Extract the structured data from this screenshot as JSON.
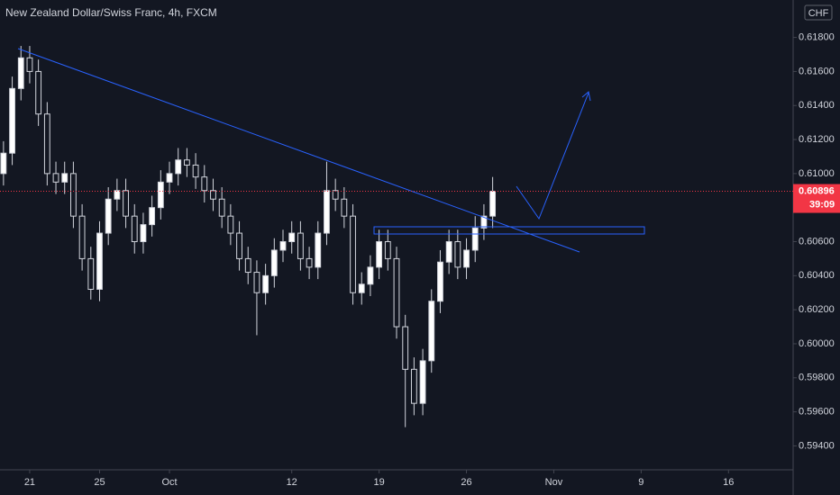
{
  "chart_data": {
    "type": "candlestick",
    "title": "New Zealand Dollar/Swiss Franc, 4h, FXCM",
    "currency": "CHF",
    "countdown": "39:09",
    "last_price": 0.60896,
    "up_color": "#ffffff",
    "down_color": "#131722",
    "last_price_color": "#f23645",
    "grid": false,
    "x": [
      -1.5,
      -1,
      -0.5,
      0,
      0.5,
      1,
      1.5,
      2,
      2.5,
      3,
      3.5,
      4,
      4.5,
      5,
      5.5,
      6,
      6.5,
      7,
      7.5,
      8,
      8.5,
      9,
      9.5,
      10,
      10.5,
      11,
      11.5,
      12,
      12.5,
      13,
      13.5,
      14,
      14.5,
      15,
      15.5,
      16,
      16.5,
      17,
      17.5,
      18,
      18.5,
      19,
      19.5,
      20,
      20.5,
      21,
      21.5,
      22,
      22.5,
      23,
      23.5,
      24,
      24.5,
      25,
      25.5,
      26,
      26.5
    ],
    "open": [
      0.61,
      0.6112,
      0.615,
      0.6168,
      0.616,
      0.6135,
      0.61,
      0.6095,
      0.61,
      0.6075,
      0.605,
      0.6032,
      0.6065,
      0.6085,
      0.609,
      0.6075,
      0.606,
      0.607,
      0.608,
      0.6095,
      0.61,
      0.6108,
      0.6105,
      0.6098,
      0.609,
      0.6085,
      0.6075,
      0.6065,
      0.605,
      0.6042,
      0.603,
      0.604,
      0.6055,
      0.606,
      0.6065,
      0.605,
      0.6045,
      0.6065,
      0.609,
      0.6085,
      0.6075,
      0.603,
      0.6035,
      0.6045,
      0.606,
      0.605,
      0.601,
      0.5985,
      0.5965,
      0.599,
      0.6025,
      0.6048,
      0.606,
      0.6045,
      0.6055,
      0.6068,
      0.6075
    ],
    "high": [
      0.6119,
      0.6157,
      0.6175,
      0.6175,
      0.6167,
      0.6142,
      0.6107,
      0.6107,
      0.6107,
      0.6082,
      0.6057,
      0.6072,
      0.6092,
      0.6097,
      0.6097,
      0.6082,
      0.6077,
      0.6087,
      0.6102,
      0.6107,
      0.6115,
      0.6115,
      0.6112,
      0.6105,
      0.6097,
      0.6092,
      0.6082,
      0.6072,
      0.6057,
      0.6049,
      0.6047,
      0.6062,
      0.6067,
      0.6072,
      0.6072,
      0.6057,
      0.6072,
      0.6107,
      0.6097,
      0.6092,
      0.6082,
      0.6042,
      0.6052,
      0.6067,
      0.6067,
      0.6057,
      0.6017,
      0.5992,
      0.5997,
      0.6032,
      0.6055,
      0.6067,
      0.6067,
      0.6062,
      0.6075,
      0.6082,
      0.6098
    ],
    "low": [
      0.6093,
      0.6105,
      0.6143,
      0.6153,
      0.6128,
      0.6093,
      0.6088,
      0.6088,
      0.6068,
      0.6043,
      0.6026,
      0.6025,
      0.6058,
      0.6078,
      0.6068,
      0.6053,
      0.6053,
      0.6063,
      0.6073,
      0.6088,
      0.6093,
      0.6098,
      0.6091,
      0.6083,
      0.6078,
      0.6068,
      0.6058,
      0.6043,
      0.6035,
      0.6005,
      0.6023,
      0.6033,
      0.6048,
      0.6053,
      0.6043,
      0.6038,
      0.6038,
      0.6058,
      0.6078,
      0.6068,
      0.6023,
      0.6023,
      0.6028,
      0.6038,
      0.6043,
      0.6003,
      0.5951,
      0.5958,
      0.5958,
      0.5983,
      0.6018,
      0.6041,
      0.6038,
      0.6038,
      0.6048,
      0.6061,
      0.6068
    ],
    "close": [
      0.6112,
      0.615,
      0.6168,
      0.616,
      0.6135,
      0.61,
      0.6095,
      0.61,
      0.6075,
      0.605,
      0.6032,
      0.6065,
      0.6085,
      0.609,
      0.6075,
      0.606,
      0.607,
      0.608,
      0.6095,
      0.61,
      0.6108,
      0.6105,
      0.6098,
      0.609,
      0.6085,
      0.6075,
      0.6065,
      0.605,
      0.6042,
      0.603,
      0.604,
      0.6055,
      0.606,
      0.6065,
      0.605,
      0.6045,
      0.6065,
      0.609,
      0.6085,
      0.6075,
      0.603,
      0.6035,
      0.6045,
      0.606,
      0.605,
      0.601,
      0.5985,
      0.5965,
      0.599,
      0.6025,
      0.6048,
      0.606,
      0.6045,
      0.6055,
      0.6068,
      0.6075,
      0.60896
    ],
    "xlim": [
      -1.7,
      43.7
    ],
    "xticks": [
      {
        "value": 0,
        "label": "21"
      },
      {
        "value": 4,
        "label": "25"
      },
      {
        "value": 8,
        "label": "Oct"
      },
      {
        "value": 15,
        "label": "12"
      },
      {
        "value": 20,
        "label": "19"
      },
      {
        "value": 25,
        "label": "26"
      },
      {
        "value": 30,
        "label": "Nov"
      },
      {
        "value": 35,
        "label": "9"
      },
      {
        "value": 40,
        "label": "16"
      }
    ],
    "ylim": [
      0.5927,
      0.6202
    ],
    "yticks": [
      {
        "value": 0.618,
        "label": "0.61800"
      },
      {
        "value": 0.616,
        "label": "0.61600"
      },
      {
        "value": 0.614,
        "label": "0.61400"
      },
      {
        "value": 0.612,
        "label": "0.61200"
      },
      {
        "value": 0.61,
        "label": "0.61000"
      },
      {
        "value": 0.606,
        "label": "0.60600"
      },
      {
        "value": 0.604,
        "label": "0.60400"
      },
      {
        "value": 0.602,
        "label": "0.60200"
      },
      {
        "value": 0.6,
        "label": "0.60000"
      },
      {
        "value": 0.598,
        "label": "0.59800"
      },
      {
        "value": 0.596,
        "label": "0.59600"
      },
      {
        "value": 0.594,
        "label": "0.59400"
      }
    ]
  }
}
